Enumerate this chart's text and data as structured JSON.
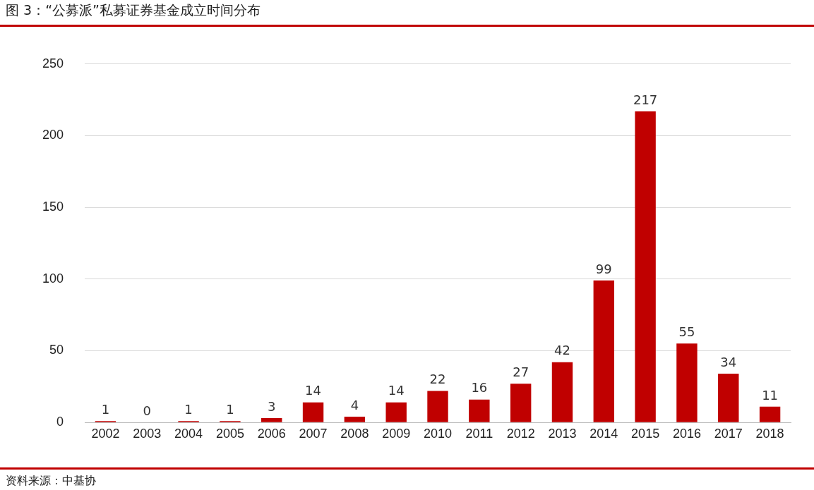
{
  "chart_data": {
    "type": "bar",
    "title": "图 3：“公募派”私募证券基金成立时间分布",
    "categories": [
      "2002",
      "2003",
      "2004",
      "2005",
      "2006",
      "2007",
      "2008",
      "2009",
      "2010",
      "2011",
      "2012",
      "2013",
      "2014",
      "2015",
      "2016",
      "2017",
      "2018"
    ],
    "values": [
      1,
      0,
      1,
      1,
      3,
      14,
      4,
      14,
      22,
      16,
      27,
      42,
      99,
      217,
      55,
      34,
      11
    ],
    "color": "#c00000",
    "ylim": [
      0,
      250
    ],
    "yticks": [
      0,
      50,
      100,
      150,
      200,
      250
    ],
    "grid": "y",
    "data_labels": true,
    "legend": false,
    "annotations": [
      "资料来源：中基协"
    ]
  }
}
